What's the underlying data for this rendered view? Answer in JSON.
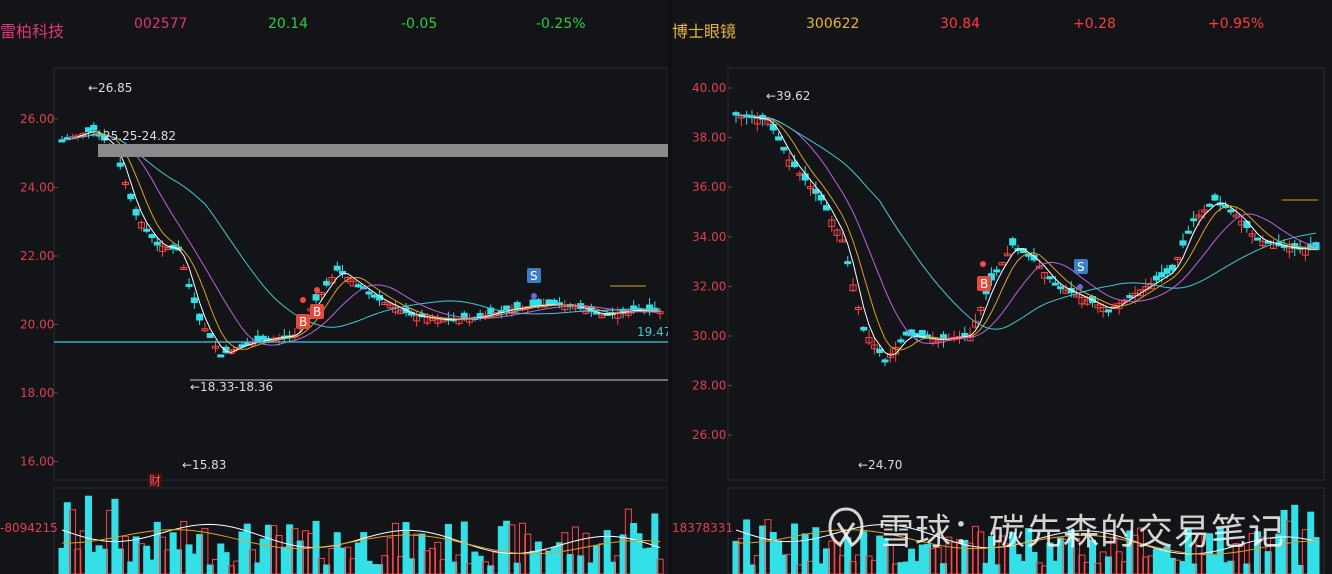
{
  "left": {
    "name": "雷柏科技",
    "code": "002577",
    "price": "20.14",
    "change": "-0.05",
    "pct": "-0.25%",
    "colors": {
      "name": "#e0347a",
      "code": "#e0347a",
      "price": "#2ecc40",
      "change": "#2ecc40",
      "pct": "#2ecc40"
    },
    "y_ticks": [
      "26.00",
      "24.00",
      "22.00",
      "20.00",
      "18.00",
      "16.00"
    ],
    "annotations": {
      "high": "26.85",
      "zone": "25.25-24.82",
      "low_zone": "18.33-18.36",
      "low": "15.83",
      "last": "19.47",
      "fin_tag": "财",
      "buy1": "B",
      "buy2": "B",
      "sell": "S"
    },
    "volume_label": "-8094215"
  },
  "right": {
    "name": "博士眼镜",
    "code": "300622",
    "price": "30.84",
    "change": "+0.28",
    "pct": "+0.95%",
    "colors": {
      "name": "#e8b33a",
      "code": "#e8b33a",
      "price": "#ff3b3b",
      "change": "#ff3b3b",
      "pct": "#ff3b3b"
    },
    "y_ticks": [
      "40.00",
      "38.00",
      "36.00",
      "34.00",
      "32.00",
      "30.00",
      "28.00",
      "26.00"
    ],
    "annotations": {
      "high": "39.62",
      "low": "24.70",
      "buy": "B",
      "sell": "S"
    },
    "volume_label": "18378331"
  },
  "watermark": "雪球：碳先森的交易笔记"
}
